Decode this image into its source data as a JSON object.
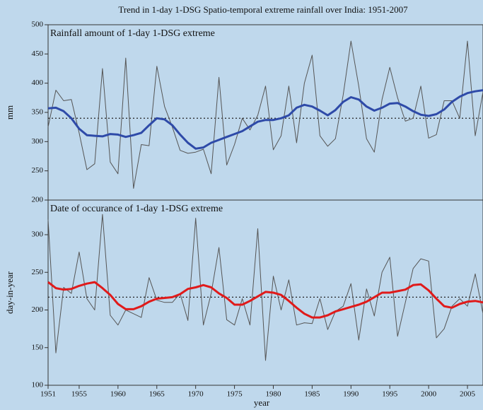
{
  "title": "Trend in 1-day 1-DSG Spatio-temporal extreme rainfall over India: 1951-2007",
  "x_axis_label": "year",
  "chart_data": [
    {
      "type": "line",
      "title": "Rainfall amount of 1-day 1-DSG extreme",
      "y_axis_label": "mm",
      "x": [
        1951,
        1952,
        1953,
        1954,
        1955,
        1956,
        1957,
        1958,
        1959,
        1960,
        1961,
        1962,
        1963,
        1964,
        1965,
        1966,
        1967,
        1968,
        1969,
        1970,
        1971,
        1972,
        1973,
        1974,
        1975,
        1976,
        1977,
        1978,
        1979,
        1980,
        1981,
        1982,
        1983,
        1984,
        1985,
        1986,
        1987,
        1988,
        1989,
        1990,
        1991,
        1992,
        1993,
        1994,
        1995,
        1996,
        1997,
        1998,
        1999,
        2000,
        2001,
        2002,
        2003,
        2004,
        2005,
        2006,
        2007
      ],
      "xlim": [
        1951,
        2007
      ],
      "ylim": [
        200,
        500
      ],
      "yticks": [
        200,
        250,
        300,
        350,
        400,
        450,
        500
      ],
      "reference_line": 340,
      "series": [
        {
          "color": "#555555",
          "values": [
            325,
            388,
            370,
            372,
            315,
            252,
            262,
            425,
            265,
            245,
            443,
            220,
            295,
            293,
            429,
            360,
            325,
            285,
            280,
            282,
            287,
            245,
            410,
            260,
            295,
            340,
            320,
            345,
            395,
            286,
            310,
            395,
            298,
            400,
            448,
            310,
            292,
            305,
            380,
            472,
            395,
            305,
            282,
            372,
            427,
            375,
            335,
            340,
            395,
            306,
            312,
            370,
            370,
            340,
            472,
            310,
            385
          ]
        },
        {
          "color": "#2e4aa8",
          "values": [
            357,
            358,
            352,
            340,
            322,
            311,
            310,
            309,
            313,
            312,
            308,
            311,
            315,
            328,
            340,
            338,
            328,
            312,
            298,
            288,
            290,
            298,
            303,
            308,
            313,
            318,
            326,
            334,
            337,
            337,
            340,
            345,
            358,
            363,
            360,
            353,
            345,
            354,
            368,
            376,
            372,
            360,
            353,
            358,
            365,
            366,
            360,
            352,
            346,
            344,
            347,
            355,
            368,
            377,
            383,
            386,
            388
          ]
        }
      ]
    },
    {
      "type": "line",
      "title": "Date of occurance of 1-day 1-DSG extreme",
      "y_axis_label": "day-in-year",
      "x": [
        1951,
        1952,
        1953,
        1954,
        1955,
        1956,
        1957,
        1958,
        1959,
        1960,
        1961,
        1962,
        1963,
        1964,
        1965,
        1966,
        1967,
        1968,
        1969,
        1970,
        1971,
        1972,
        1973,
        1974,
        1975,
        1976,
        1977,
        1978,
        1979,
        1980,
        1981,
        1982,
        1983,
        1984,
        1985,
        1986,
        1987,
        1988,
        1989,
        1990,
        1991,
        1992,
        1993,
        1994,
        1995,
        1996,
        1997,
        1998,
        1999,
        2000,
        2001,
        2002,
        2003,
        2004,
        2005,
        2006,
        2007
      ],
      "xlim": [
        1951,
        2007
      ],
      "xticks": [
        1951,
        1955,
        1960,
        1965,
        1970,
        1975,
        1980,
        1985,
        1990,
        1995,
        2000,
        2005
      ],
      "ylim": [
        100,
        346
      ],
      "yticks": [
        100,
        150,
        200,
        250,
        300
      ],
      "reference_line": 217,
      "series": [
        {
          "color": "#555555",
          "values": [
            320,
            143,
            230,
            222,
            277,
            215,
            200,
            327,
            193,
            180,
            200,
            195,
            190,
            243,
            213,
            210,
            210,
            222,
            186,
            322,
            180,
            222,
            283,
            187,
            180,
            215,
            180,
            308,
            133,
            245,
            200,
            240,
            180,
            183,
            182,
            215,
            174,
            198,
            205,
            235,
            160,
            228,
            192,
            250,
            270,
            165,
            210,
            255,
            268,
            265,
            163,
            175,
            205,
            215,
            205,
            248,
            195
          ]
        },
        {
          "color": "#e01a1a",
          "values": [
            237,
            229,
            227,
            228,
            232,
            235,
            237,
            229,
            220,
            208,
            201,
            201,
            205,
            211,
            215,
            216,
            217,
            221,
            228,
            230,
            233,
            230,
            222,
            216,
            207,
            207,
            212,
            218,
            224,
            223,
            220,
            212,
            203,
            195,
            190,
            190,
            193,
            198,
            201,
            204,
            207,
            211,
            217,
            223,
            223,
            225,
            227,
            233,
            234,
            226,
            215,
            205,
            203,
            208,
            211,
            212,
            210
          ]
        }
      ]
    }
  ]
}
